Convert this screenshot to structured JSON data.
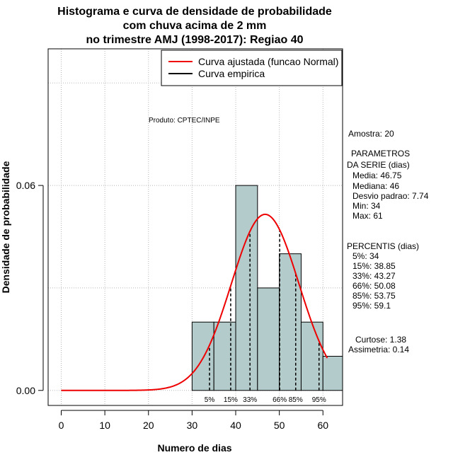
{
  "chart_data": {
    "type": "bar",
    "title_lines": [
      "Histograma e curva de densidade de probabilidade",
      "com chuva acima de 2 mm",
      "no trimestre AMJ (1998-2017): Regiao 40"
    ],
    "xlabel": "Numero de dias",
    "ylabel": "Densidade de probabilidade",
    "xlim": [
      -3,
      64.5
    ],
    "ylim": [
      -0.0044,
      0.1
    ],
    "x_ticks": [
      0,
      10,
      20,
      30,
      40,
      50,
      60
    ],
    "y_ticks": [
      0.0,
      0.06
    ],
    "y_tick_labels": [
      "0.00",
      "0.06"
    ],
    "grid_x": [
      0,
      10,
      20,
      30,
      40,
      50,
      60
    ],
    "grid_y": [
      0,
      0.03,
      0.06,
      0.09
    ],
    "histogram": {
      "bin_edges": [
        30,
        35,
        40,
        45,
        50,
        55,
        60,
        65
      ],
      "densities": [
        0.02,
        0.02,
        0.06,
        0.03,
        0.04,
        0.02,
        0.01
      ],
      "fill": "#b4cbcb"
    },
    "normal_curve": {
      "mean": 46.75,
      "sd": 7.74,
      "x_range": [
        0,
        61
      ],
      "color": "#ee0000",
      "name": "Curva ajustada (funcao Normal)"
    },
    "empirical_curve": {
      "name": "Curva empirica",
      "color": "#000000"
    },
    "percentiles": [
      {
        "label": "5%",
        "value": 34
      },
      {
        "label": "15%",
        "value": 38.85
      },
      {
        "label": "33%",
        "value": 43.27
      },
      {
        "label": "66%",
        "value": 50.08
      },
      {
        "label": "85%",
        "value": 53.75
      },
      {
        "label": "95%",
        "value": 59.1
      }
    ],
    "annotation": "Produto: CPTEC/INPE",
    "legend_position": "top-right"
  },
  "stats": {
    "amostra": "Amostra: 20",
    "params_title_1": "PARAMETROS",
    "params_title_2": "DA SERIE (dias)",
    "media": "Media: 46.75",
    "mediana": "Mediana: 46",
    "desvio": "Desvio padrao: 7.74",
    "min": "Min: 34",
    "max": "Max: 61",
    "percentis_title": "PERCENTIS (dias)",
    "p5": "5%: 34",
    "p15": "15%: 38.85",
    "p33": "33%: 43.27",
    "p66": "66%: 50.08",
    "p85": "85%: 53.75",
    "p95": "95%: 59.1",
    "curtose": "Curtose: 1.38",
    "assimetria": "Assimetria: 0.14"
  }
}
